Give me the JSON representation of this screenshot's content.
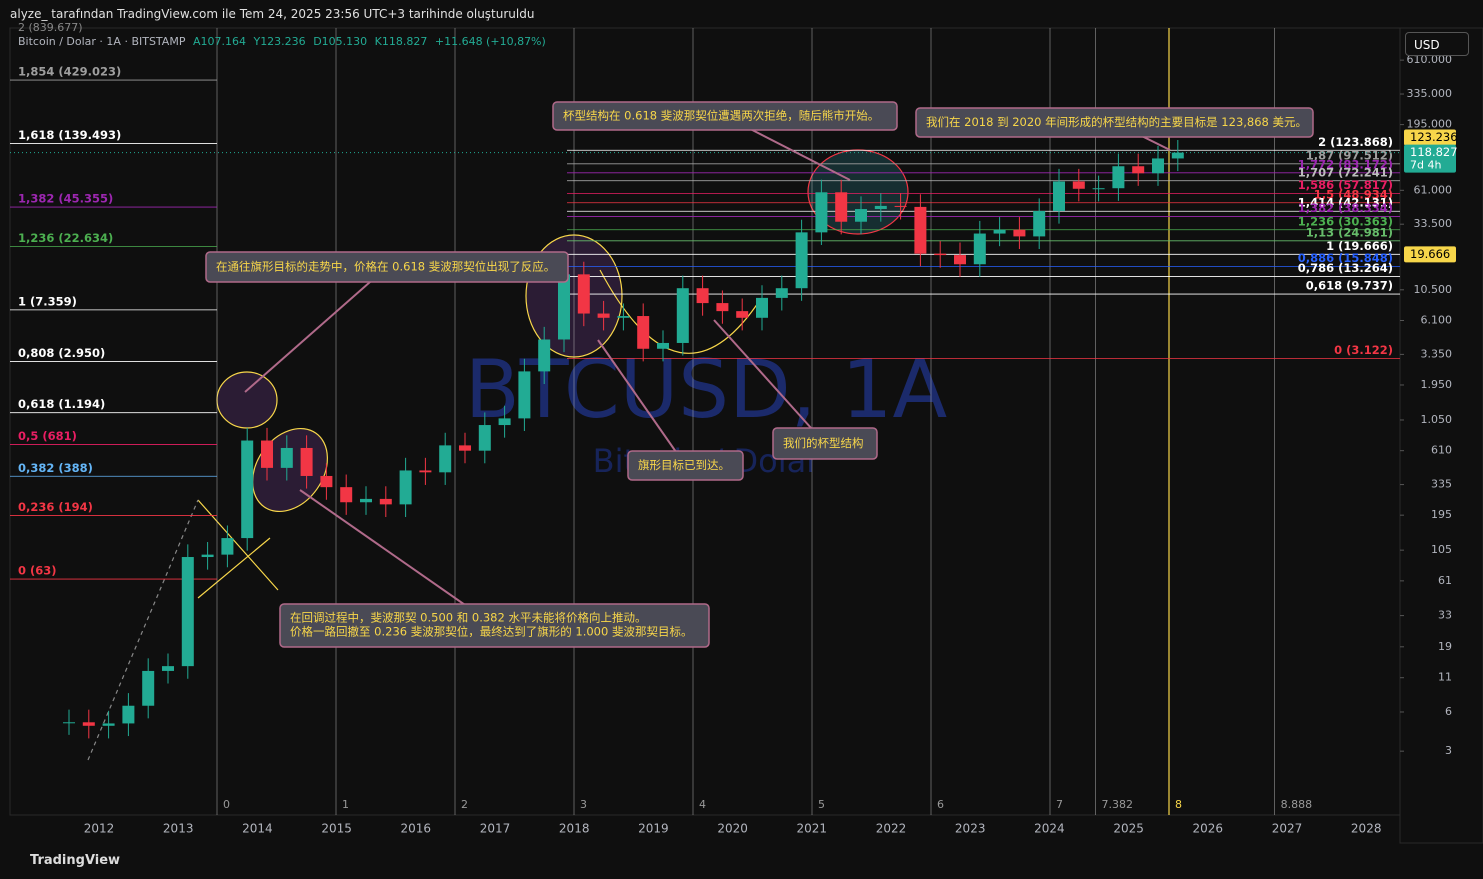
{
  "header": {
    "credit": "alyze_ tarafından TradingView.com ile Tem 24, 2025 23:56 UTC+3 tarihinde oluşturuldu"
  },
  "legend": {
    "symbol": "Bitcoin / Dolar · 1A · BITSTAMP",
    "open": "A107.164",
    "high": "Y123.236",
    "low": "D105.130",
    "close": "K118.827",
    "change": "+11.648 (+10,87%)",
    "top_level": "2 (839.677)"
  },
  "currency": "USD",
  "watermark": {
    "symbol": "BTCUSD, 1A",
    "name": "Bitcoin / Dolar"
  },
  "footer": {
    "brand": "TradingView"
  },
  "price_axis": {
    "log": true,
    "ylim": [
      0.97,
      1077000
    ],
    "ticks": [
      {
        "value": 610000,
        "label": "610.000"
      },
      {
        "value": 335000,
        "label": "335.000"
      },
      {
        "value": 195000,
        "label": "195.000"
      },
      {
        "value": 61000,
        "label": "61.000"
      },
      {
        "value": 33500,
        "label": "33.500"
      },
      {
        "value": 10500,
        "label": "10.500"
      },
      {
        "value": 6100,
        "label": "6.100"
      },
      {
        "value": 3350,
        "label": "3.350"
      },
      {
        "value": 1950,
        "label": "1.950"
      },
      {
        "value": 1050,
        "label": "1.050"
      },
      610,
      335,
      195,
      105,
      61,
      33,
      19,
      11,
      6,
      3
    ],
    "badges": [
      {
        "value": 123236,
        "label": "123.236",
        "color": "#f7d64a"
      },
      {
        "value": 118827,
        "label": "118.827",
        "sub": "7d 4h",
        "color": "#22ab94"
      },
      {
        "value": 19666,
        "label": "19.666",
        "color": "#f7d64a"
      }
    ]
  },
  "time_axis": {
    "years": [
      "2012",
      "2013",
      "2014",
      "2015",
      "2016",
      "2017",
      "2018",
      "2019",
      "2020",
      "2021",
      "2022",
      "2023",
      "2024",
      "2025",
      "2026",
      "2027",
      "2028"
    ]
  },
  "quarterly_closes": [
    5,
    4.7,
    4.9,
    6.7,
    12.4,
    13.5,
    93,
    97,
    130,
    730,
    450,
    640,
    390,
    320,
    245,
    260,
    236,
    430,
    416,
    670,
    610,
    960,
    1080,
    2480,
    4360,
    13800,
    6900,
    6400,
    6600,
    3700,
    4100,
    10800,
    8300,
    7200,
    6400,
    9100,
    10800,
    29000,
    58900,
    35000,
    43800,
    46300,
    45500,
    19900,
    19400,
    16500,
    28400,
    30400,
    27000,
    42300,
    71300,
    62700,
    63300,
    93400,
    82500,
    107200,
    118827
  ],
  "fib_left": [
    {
      "label": "1,854 (429.023)",
      "price": 429023,
      "color": "#9e9e9e"
    },
    {
      "label": "1,618 (139.493)",
      "price": 139493,
      "color": "#ffffff"
    },
    {
      "label": "1,382 (45.355)",
      "price": 45355,
      "color": "#9c27b0"
    },
    {
      "label": "1,236 (22.634)",
      "price": 22634,
      "color": "#4caf50"
    },
    {
      "label": "1 (7.359)",
      "price": 7359,
      "color": "#ffffff"
    },
    {
      "label": "0,808 (2.950)",
      "price": 2950,
      "color": "#ffffff"
    },
    {
      "label": "0,618 (1.194)",
      "price": 1194,
      "color": "#ffffff"
    },
    {
      "label": "0,5 (681)",
      "price": 681,
      "color": "#e91e63"
    },
    {
      "label": "0,382 (388)",
      "price": 388,
      "color": "#64b5f6"
    },
    {
      "label": "0,236 (194)",
      "price": 194,
      "color": "#f23645"
    },
    {
      "label": "0 (63)",
      "price": 63,
      "color": "#f23645"
    }
  ],
  "fib_right": [
    {
      "label": "2 (123.868)",
      "price": 123868,
      "color": "#ffffff"
    },
    {
      "label": "1,87 (97.512)",
      "price": 97512,
      "color": "#9e9e9e"
    },
    {
      "label": "1,772 (83.172)",
      "price": 83172,
      "color": "#9c27b0"
    },
    {
      "label": "1,707 (72.241)",
      "price": 72241,
      "color": "#bdbdbd"
    },
    {
      "label": "1,586 (57.817)",
      "price": 57817,
      "color": "#e91e63"
    },
    {
      "label": "1,5 (48.934)",
      "price": 48934,
      "color": "#f23645"
    },
    {
      "label": "1,414 (42.131)",
      "price": 42131,
      "color": "#ffffff"
    },
    {
      "label": "1,382 (38.334)",
      "price": 38334,
      "color": "#9c27b0"
    },
    {
      "label": "1,236 (30.363)",
      "price": 30363,
      "color": "#4caf50"
    },
    {
      "label": "1,13 (24.981)",
      "price": 24981,
      "color": "#66bb6a"
    },
    {
      "label": "1 (19.666)",
      "price": 19666,
      "color": "#ffffff"
    },
    {
      "label": "0,886 (15.848)",
      "price": 15848,
      "color": "#2962ff"
    },
    {
      "label": "0,786 (13.264)",
      "price": 13264,
      "color": "#ffffff"
    },
    {
      "label": "0,618 (9.737)",
      "price": 9737,
      "color": "#ffffff"
    },
    {
      "label": "0 (3.122)",
      "price": 3122,
      "color": "#f23645"
    }
  ],
  "time_zones": [
    0,
    1,
    2,
    3,
    4,
    5,
    6,
    7,
    7.382,
    8,
    8.888
  ],
  "annotations": [
    {
      "text": "杯型结构在 0.618 斐波那契位遭遇两次拒绝，随后熊市开始。"
    },
    {
      "text": "我们在 2018 到 2020 年间形成的杯型结构的主要目标是 123,868 美元。"
    },
    {
      "text": "在通往旗形目标的走势中，价格在 0.618 斐波那契位出现了反应。"
    },
    {
      "text": "旗形目标已到达。"
    },
    {
      "text": "我们的杯型结构"
    },
    {
      "text": "在回调过程中，斐波那契 0.500 和 0.382 水平未能将价格向上推动。",
      "text2": "价格一路回撤至 0.236 斐波那契位，最终达到了旗形的 1.000 斐波那契目标。"
    }
  ]
}
